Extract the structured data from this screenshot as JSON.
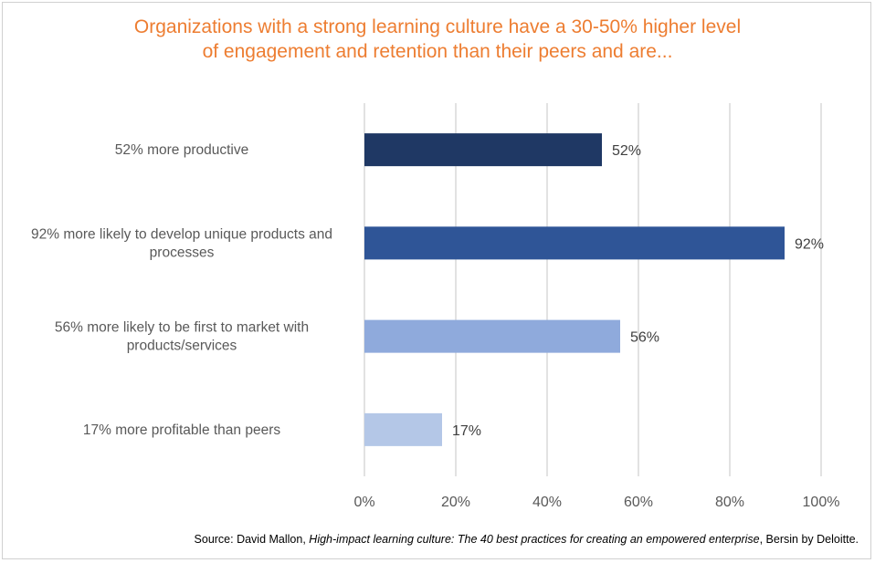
{
  "chart_data": {
    "type": "bar",
    "orientation": "horizontal",
    "title_lines": [
      "Organizations with a strong learning culture have a 30-50% higher level",
      "of engagement and retention than their peers and are..."
    ],
    "categories": [
      [
        "52% more productive"
      ],
      [
        "92% more likely to develop unique products and",
        "processes"
      ],
      [
        "56% more likely to be first to market with",
        "products/services"
      ],
      [
        "17% more profitable than peers"
      ]
    ],
    "values": [
      52,
      92,
      56,
      17
    ],
    "data_labels": [
      "52%",
      "92%",
      "56%",
      "17%"
    ],
    "bar_colors": [
      "#1f3864",
      "#2f5597",
      "#8faadc",
      "#b4c7e7"
    ],
    "xlim": [
      0,
      100
    ],
    "xticks": [
      0,
      20,
      40,
      60,
      80,
      100
    ],
    "xtick_labels": [
      "0%",
      "20%",
      "40%",
      "60%",
      "80%",
      "100%"
    ],
    "grid": "vertical",
    "legend": "none",
    "title_color": "#ed7d31"
  },
  "source": {
    "prefix": "Source: David Mallon, ",
    "title": "High-impact learning culture: The 40 best practices for creating an empowered enterprise",
    "suffix": ", Bersin by Deloitte."
  }
}
